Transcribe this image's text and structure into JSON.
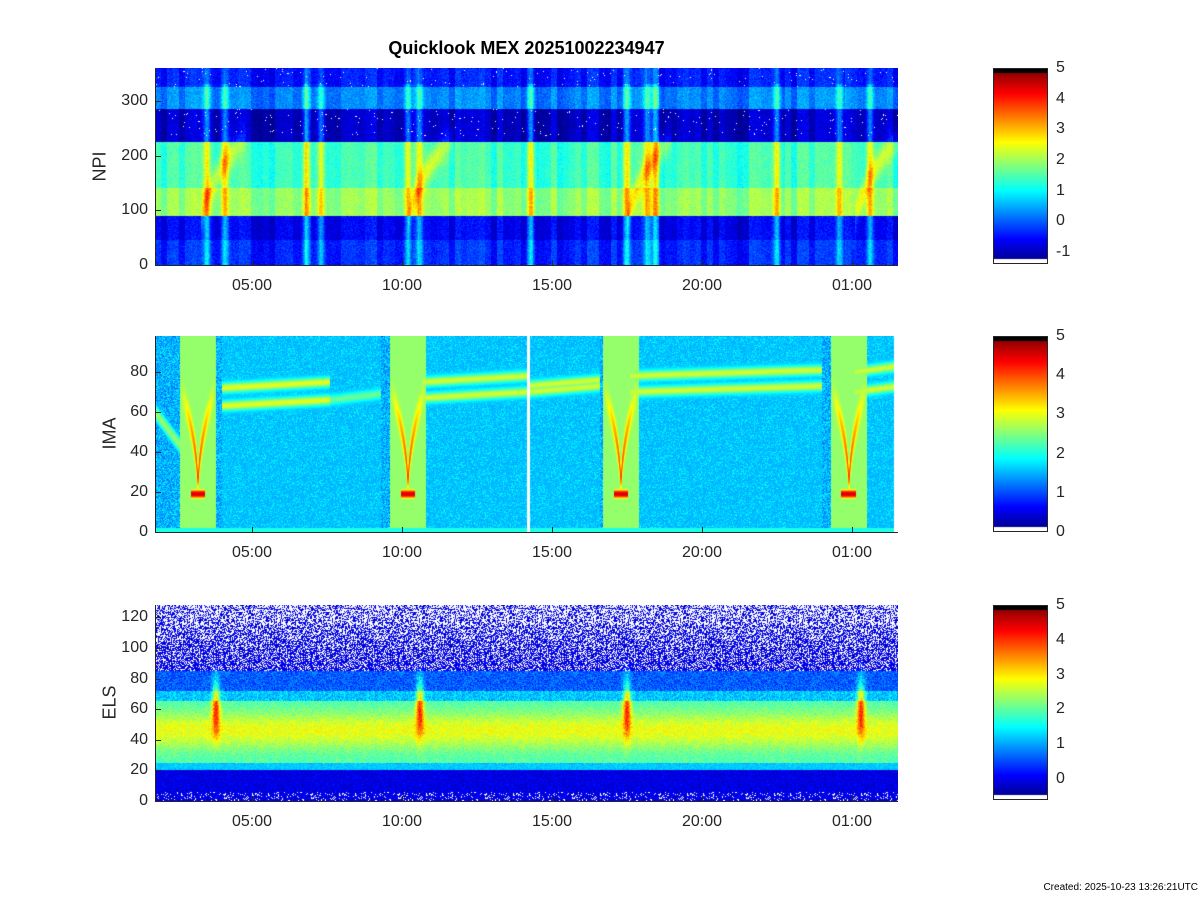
{
  "title": "Quicklook MEX 20251002234947",
  "footer": "Created: 2025-10-23 13:26:21UTC",
  "chart_data": [
    {
      "type": "heatmap",
      "ylabel": "NPI",
      "ylim": [
        0,
        360
      ],
      "yticks": [
        "0",
        "100",
        "200",
        "300"
      ],
      "xlim": [
        "01:46",
        "02:32"
      ],
      "xticks": [
        "05:00",
        "10:00",
        "15:00",
        "20:00",
        "01:00"
      ],
      "colormap": "jet",
      "colorbar": {
        "range": [
          -1.4,
          5
        ],
        "ticks": [
          "-1",
          "0",
          "1",
          "2",
          "3",
          "4",
          "5"
        ]
      }
    },
    {
      "type": "heatmap",
      "ylabel": "IMA",
      "ylim": [
        0,
        98
      ],
      "yticks": [
        "0",
        "20",
        "40",
        "60",
        "80"
      ],
      "xlim": [
        "01:46",
        "02:32"
      ],
      "xticks": [
        "05:00",
        "10:00",
        "15:00",
        "20:00",
        "01:00"
      ],
      "colormap": "jet",
      "colorbar": {
        "range": [
          0,
          5
        ],
        "ticks": [
          "0",
          "1",
          "2",
          "3",
          "4",
          "5"
        ]
      }
    },
    {
      "type": "heatmap",
      "ylabel": "ELS",
      "ylim": [
        0,
        128
      ],
      "yticks": [
        "0",
        "20",
        "40",
        "60",
        "80",
        "100",
        "120"
      ],
      "xlim": [
        "01:46",
        "02:32"
      ],
      "xticks": [
        "05:00",
        "10:00",
        "15:00",
        "20:00",
        "01:00"
      ],
      "colormap": "jet",
      "colorbar": {
        "range": [
          -0.6,
          5
        ],
        "ticks": [
          "0",
          "1",
          "2",
          "3",
          "4",
          "5"
        ]
      }
    }
  ]
}
